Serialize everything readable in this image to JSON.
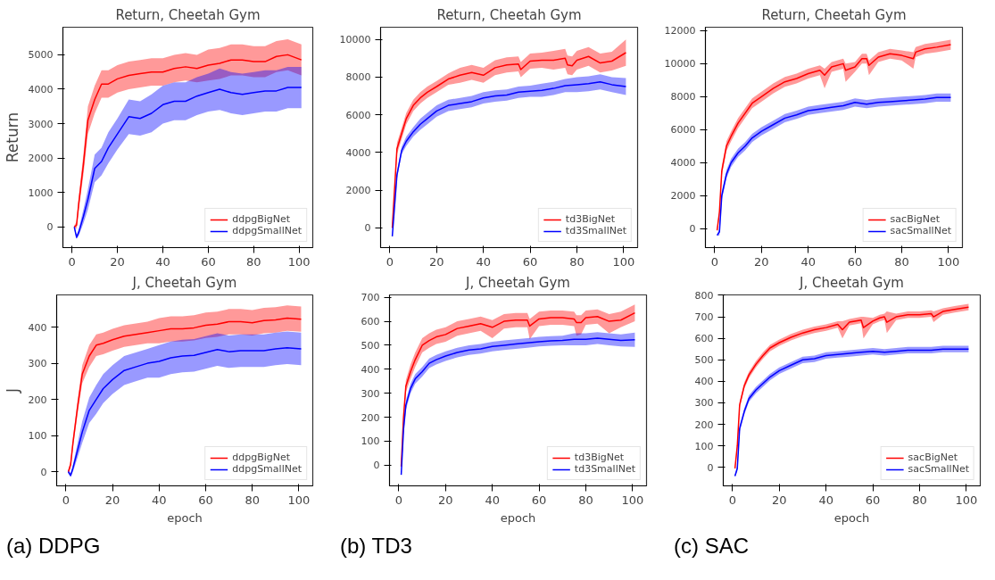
{
  "chart_data": [
    {
      "type": "line",
      "title": "Return, Cheetah Gym",
      "ylabel": "Return",
      "xlim": [
        -4,
        106
      ],
      "xticks": [
        0,
        20,
        40,
        60,
        80,
        100
      ],
      "ylim": [
        -600,
        5800
      ],
      "yticks": [
        0,
        1000,
        2000,
        3000,
        4000,
        5000
      ],
      "grid": false,
      "legend": "bottom right",
      "series": [
        {
          "name": "ddpgBigNet",
          "color": "#ff0000",
          "x": [
            1,
            2,
            3,
            5,
            7,
            10,
            13,
            16,
            20,
            25,
            30,
            35,
            40,
            45,
            50,
            55,
            60,
            65,
            70,
            75,
            80,
            85,
            90,
            95,
            101
          ],
          "values": [
            0,
            50,
            700,
            1800,
            3100,
            3700,
            4150,
            4150,
            4300,
            4400,
            4450,
            4500,
            4500,
            4600,
            4650,
            4600,
            4700,
            4750,
            4850,
            4850,
            4800,
            4800,
            4950,
            5000,
            4850
          ],
          "lower": [
            -50,
            -50,
            500,
            1500,
            2700,
            3300,
            3750,
            3750,
            3900,
            4000,
            4050,
            4100,
            4100,
            4200,
            4250,
            4200,
            4250,
            4300,
            4400,
            4400,
            4350,
            4350,
            4500,
            4550,
            4400
          ],
          "upper": [
            50,
            150,
            900,
            2100,
            3500,
            4100,
            4550,
            4550,
            4700,
            4800,
            4850,
            4900,
            4900,
            5000,
            5050,
            5000,
            5150,
            5200,
            5300,
            5300,
            5250,
            5250,
            5400,
            5450,
            5300
          ]
        },
        {
          "name": "ddpgSmallNet",
          "color": "#0000ff",
          "x": [
            1,
            2,
            3,
            5,
            7,
            10,
            13,
            16,
            20,
            25,
            30,
            35,
            40,
            45,
            50,
            55,
            60,
            65,
            70,
            75,
            80,
            85,
            90,
            95,
            101
          ],
          "values": [
            0,
            -300,
            -150,
            300,
            800,
            1700,
            1900,
            2300,
            2700,
            3200,
            3150,
            3300,
            3550,
            3650,
            3650,
            3800,
            3900,
            4000,
            3900,
            3850,
            3900,
            3950,
            3950,
            4050,
            4050
          ],
          "lower": [
            -50,
            -350,
            -250,
            100,
            500,
            1300,
            1500,
            1850,
            2250,
            2700,
            2650,
            2750,
            3000,
            3100,
            3100,
            3250,
            3350,
            3400,
            3300,
            3250,
            3300,
            3350,
            3350,
            3450,
            3450
          ],
          "upper": [
            50,
            -250,
            -50,
            500,
            1100,
            2100,
            2300,
            2750,
            3150,
            3700,
            3650,
            3850,
            4100,
            4200,
            4200,
            4350,
            4450,
            4600,
            4500,
            4450,
            4500,
            4550,
            4550,
            4650,
            4650
          ]
        }
      ]
    },
    {
      "type": "line",
      "title": "Return, Cheetah Gym",
      "xlim": [
        -4,
        106
      ],
      "xticks": [
        0,
        20,
        40,
        60,
        80,
        100
      ],
      "ylim": [
        -1050,
        10650
      ],
      "yticks": [
        0,
        2000,
        4000,
        6000,
        8000,
        10000
      ],
      "grid": false,
      "legend": "bottom right",
      "series": [
        {
          "name": "td3BigNet",
          "color": "#ff0000",
          "x": [
            1,
            3,
            5,
            7,
            10,
            13,
            16,
            20,
            25,
            30,
            35,
            40,
            45,
            50,
            55,
            56,
            60,
            65,
            70,
            75,
            76,
            78,
            80,
            85,
            90,
            95,
            101
          ],
          "values": [
            0,
            4200,
            5000,
            5800,
            6500,
            6900,
            7200,
            7500,
            7900,
            8100,
            8250,
            8100,
            8500,
            8650,
            8700,
            8400,
            8850,
            8900,
            8900,
            9000,
            8650,
            8600,
            8900,
            9100,
            8750,
            8850,
            9300
          ],
          "lower": [
            -100,
            3900,
            4700,
            5500,
            6200,
            6600,
            6900,
            7200,
            7600,
            7700,
            7850,
            7700,
            8100,
            8250,
            8300,
            8000,
            8450,
            8500,
            8400,
            8500,
            8150,
            8100,
            8400,
            8600,
            8250,
            8350,
            8600
          ],
          "upper": [
            100,
            4500,
            5300,
            6100,
            6800,
            7200,
            7500,
            7800,
            8200,
            8500,
            8650,
            8500,
            8900,
            9050,
            9100,
            8800,
            9250,
            9300,
            9400,
            9500,
            9150,
            9100,
            9400,
            9600,
            9250,
            9350,
            10000
          ]
        },
        {
          "name": "td3SmallNet",
          "color": "#0000ff",
          "x": [
            1,
            3,
            5,
            7,
            10,
            13,
            16,
            20,
            25,
            30,
            35,
            40,
            45,
            50,
            55,
            60,
            65,
            70,
            75,
            80,
            85,
            90,
            95,
            101
          ],
          "values": [
            -450,
            2800,
            4100,
            4600,
            5100,
            5500,
            5800,
            6200,
            6500,
            6600,
            6700,
            6900,
            7000,
            7050,
            7200,
            7250,
            7300,
            7400,
            7550,
            7600,
            7650,
            7750,
            7600,
            7500
          ],
          "lower": [
            -500,
            2600,
            3900,
            4350,
            4850,
            5200,
            5500,
            5900,
            6200,
            6300,
            6400,
            6600,
            6700,
            6750,
            6900,
            6950,
            6950,
            7050,
            7200,
            7200,
            7250,
            7350,
            7200,
            7050
          ],
          "upper": [
            -400,
            3000,
            4300,
            4850,
            5350,
            5800,
            6100,
            6500,
            6800,
            6900,
            7000,
            7200,
            7300,
            7350,
            7500,
            7550,
            7650,
            7750,
            7900,
            8000,
            8050,
            8150,
            8000,
            7950
          ]
        }
      ]
    },
    {
      "type": "line",
      "title": "Return, Cheetah Gym",
      "xlim": [
        -4,
        106
      ],
      "xticks": [
        0,
        20,
        40,
        60,
        80,
        100
      ],
      "ylim": [
        -1150,
        12210
      ],
      "yticks": [
        0,
        2000,
        4000,
        6000,
        8000,
        10000,
        12000
      ],
      "grid": false,
      "legend": "bottom right",
      "series": [
        {
          "name": "sacBigNet",
          "color": "#ff0000",
          "x": [
            1,
            2,
            3,
            5,
            7,
            10,
            13,
            16,
            20,
            25,
            30,
            35,
            40,
            45,
            47,
            50,
            55,
            56,
            60,
            63,
            65,
            66,
            70,
            75,
            80,
            85,
            86,
            90,
            95,
            101
          ],
          "values": [
            -100,
            1000,
            3500,
            5000,
            5600,
            6400,
            7000,
            7600,
            8000,
            8500,
            8900,
            9100,
            9400,
            9600,
            9300,
            9800,
            10000,
            9600,
            9800,
            10300,
            10300,
            9900,
            10400,
            10600,
            10500,
            10300,
            10700,
            10900,
            11000,
            11150
          ],
          "lower": [
            -200,
            800,
            3200,
            4700,
            5300,
            6100,
            6700,
            7300,
            7700,
            8200,
            8600,
            8800,
            9100,
            9300,
            8500,
            9500,
            9700,
            8900,
            9500,
            10000,
            10000,
            9300,
            10100,
            10300,
            10200,
            9700,
            10400,
            10600,
            10700,
            10850
          ],
          "upper": [
            0,
            1200,
            3800,
            5300,
            5900,
            6700,
            7300,
            7900,
            8300,
            8800,
            9200,
            9400,
            9700,
            9900,
            9700,
            10100,
            10300,
            10000,
            10100,
            10600,
            10600,
            10200,
            10700,
            10900,
            10800,
            10700,
            11000,
            11200,
            11300,
            11450
          ]
        },
        {
          "name": "sacSmallNet",
          "color": "#0000ff",
          "x": [
            1,
            2,
            3,
            5,
            7,
            10,
            13,
            16,
            20,
            25,
            30,
            35,
            40,
            45,
            50,
            55,
            60,
            65,
            70,
            75,
            80,
            85,
            90,
            95,
            101
          ],
          "values": [
            -400,
            -200,
            2000,
            3300,
            4000,
            4600,
            5000,
            5500,
            5900,
            6300,
            6700,
            6900,
            7150,
            7250,
            7350,
            7450,
            7650,
            7550,
            7650,
            7700,
            7750,
            7800,
            7850,
            7950,
            7950
          ],
          "lower": [
            -450,
            -400,
            1750,
            3050,
            3750,
            4350,
            4750,
            5250,
            5650,
            6050,
            6450,
            6650,
            6900,
            7000,
            7100,
            7200,
            7400,
            7300,
            7400,
            7450,
            7500,
            7550,
            7600,
            7700,
            7700
          ],
          "upper": [
            -350,
            0,
            2250,
            3550,
            4250,
            4850,
            5250,
            5750,
            6150,
            6550,
            6950,
            7150,
            7400,
            7500,
            7600,
            7700,
            7900,
            7800,
            7900,
            7950,
            8000,
            8050,
            8100,
            8200,
            8200
          ]
        }
      ]
    },
    {
      "type": "line",
      "title": "J, Cheetah Gym",
      "xlabel": "epoch",
      "ylabel": "J",
      "annotations": [
        "(a) DDPG"
      ],
      "xlim": [
        -4,
        106
      ],
      "xticks": [
        0,
        20,
        40,
        60,
        80,
        100
      ],
      "ylim": [
        -39,
        489
      ],
      "yticks": [
        0,
        100,
        200,
        300,
        400
      ],
      "grid": false,
      "legend": "bottom right",
      "series": [
        {
          "name": "ddpgBigNet",
          "color": "#ff0000",
          "x": [
            1,
            2,
            3,
            5,
            7,
            10,
            13,
            16,
            20,
            25,
            30,
            35,
            40,
            45,
            50,
            55,
            60,
            65,
            70,
            75,
            80,
            85,
            90,
            95,
            101
          ],
          "values": [
            0,
            20,
            80,
            180,
            270,
            320,
            350,
            355,
            365,
            375,
            380,
            385,
            390,
            395,
            395,
            398,
            405,
            408,
            415,
            415,
            412,
            418,
            420,
            425,
            422
          ],
          "lower": [
            -5,
            10,
            65,
            160,
            245,
            290,
            320,
            325,
            335,
            345,
            350,
            355,
            355,
            360,
            360,
            363,
            370,
            373,
            380,
            380,
            377,
            383,
            385,
            390,
            387
          ],
          "upper": [
            5,
            30,
            95,
            200,
            295,
            350,
            380,
            385,
            395,
            405,
            410,
            415,
            425,
            430,
            430,
            433,
            440,
            443,
            450,
            450,
            447,
            453,
            455,
            460,
            457
          ]
        },
        {
          "name": "ddpgSmallNet",
          "color": "#0000ff",
          "x": [
            1,
            2,
            3,
            5,
            7,
            10,
            13,
            16,
            20,
            25,
            30,
            35,
            40,
            45,
            50,
            55,
            60,
            65,
            70,
            75,
            80,
            85,
            90,
            95,
            101
          ],
          "values": [
            0,
            -10,
            10,
            60,
            110,
            170,
            200,
            230,
            255,
            280,
            290,
            300,
            305,
            315,
            320,
            322,
            330,
            338,
            332,
            335,
            335,
            335,
            340,
            343,
            340
          ],
          "lower": [
            -5,
            -15,
            0,
            40,
            80,
            135,
            160,
            190,
            215,
            240,
            250,
            260,
            260,
            270,
            275,
            277,
            285,
            293,
            287,
            290,
            290,
            290,
            295,
            298,
            295
          ],
          "upper": [
            5,
            -5,
            20,
            80,
            140,
            205,
            240,
            270,
            295,
            320,
            330,
            340,
            350,
            360,
            365,
            367,
            375,
            383,
            377,
            380,
            380,
            380,
            385,
            388,
            385
          ]
        }
      ]
    },
    {
      "type": "line",
      "title": "J, Cheetah Gym",
      "xlabel": "epoch",
      "annotations": [
        "(b) TD3"
      ],
      "xlim": [
        -4,
        106
      ],
      "xticks": [
        0,
        20,
        40,
        60,
        80,
        100
      ],
      "ylim": [
        -86,
        710
      ],
      "yticks": [
        0,
        100,
        200,
        300,
        400,
        500,
        600,
        700
      ],
      "grid": false,
      "legend": "bottom right",
      "series": [
        {
          "name": "td3BigNet",
          "color": "#ff0000",
          "x": [
            1,
            2,
            3,
            5,
            7,
            10,
            13,
            16,
            20,
            25,
            30,
            35,
            40,
            45,
            50,
            55,
            56,
            60,
            65,
            70,
            75,
            76,
            78,
            80,
            85,
            90,
            95,
            101
          ],
          "values": [
            -5,
            200,
            330,
            390,
            440,
            500,
            520,
            535,
            545,
            570,
            580,
            590,
            575,
            600,
            605,
            605,
            580,
            610,
            615,
            615,
            610,
            595,
            595,
            615,
            620,
            600,
            605,
            635
          ],
          "lower": [
            -10,
            180,
            305,
            360,
            410,
            470,
            490,
            505,
            515,
            540,
            550,
            560,
            530,
            570,
            575,
            575,
            525,
            580,
            585,
            585,
            580,
            540,
            545,
            585,
            590,
            550,
            575,
            600
          ],
          "upper": [
            0,
            220,
            355,
            420,
            470,
            530,
            550,
            565,
            575,
            600,
            610,
            620,
            605,
            630,
            635,
            635,
            610,
            640,
            645,
            645,
            640,
            625,
            625,
            645,
            650,
            630,
            640,
            670
          ]
        },
        {
          "name": "td3SmallNet",
          "color": "#0000ff",
          "x": [
            1,
            2,
            3,
            5,
            7,
            10,
            13,
            16,
            20,
            25,
            30,
            35,
            40,
            45,
            50,
            55,
            60,
            65,
            70,
            75,
            80,
            85,
            90,
            95,
            101
          ],
          "values": [
            -40,
            150,
            250,
            320,
            360,
            390,
            425,
            440,
            455,
            470,
            480,
            485,
            495,
            500,
            505,
            510,
            515,
            518,
            520,
            525,
            525,
            530,
            525,
            520,
            523
          ],
          "lower": [
            -45,
            135,
            230,
            300,
            340,
            370,
            405,
            420,
            435,
            450,
            460,
            465,
            475,
            480,
            485,
            490,
            495,
            498,
            500,
            500,
            500,
            505,
            500,
            495,
            493
          ],
          "upper": [
            -35,
            165,
            270,
            340,
            380,
            410,
            445,
            460,
            475,
            490,
            500,
            505,
            515,
            520,
            525,
            530,
            535,
            538,
            540,
            550,
            550,
            555,
            550,
            545,
            553
          ]
        }
      ]
    },
    {
      "type": "line",
      "title": "J, Cheetah Gym",
      "xlabel": "epoch",
      "annotations": [
        "(c) SAC"
      ],
      "xlim": [
        -4,
        106
      ],
      "xticks": [
        0,
        20,
        40,
        60,
        80,
        100
      ],
      "ylim": [
        -86,
        802
      ],
      "yticks": [
        0,
        100,
        200,
        300,
        400,
        500,
        600,
        700,
        800
      ],
      "grid": false,
      "legend": "bottom right",
      "series": [
        {
          "name": "sacBigNet",
          "color": "#ff0000",
          "x": [
            1,
            2,
            3,
            5,
            7,
            10,
            13,
            16,
            20,
            25,
            30,
            35,
            40,
            45,
            47,
            50,
            55,
            56,
            60,
            63,
            65,
            66,
            70,
            75,
            80,
            85,
            86,
            90,
            95,
            101
          ],
          "values": [
            -5,
            100,
            290,
            380,
            430,
            480,
            520,
            555,
            580,
            605,
            625,
            640,
            650,
            665,
            640,
            675,
            685,
            650,
            680,
            695,
            700,
            675,
            700,
            710,
            710,
            715,
            700,
            725,
            735,
            745
          ],
          "lower": [
            -10,
            85,
            275,
            365,
            415,
            465,
            505,
            540,
            565,
            590,
            610,
            625,
            635,
            650,
            600,
            660,
            670,
            600,
            665,
            680,
            685,
            625,
            685,
            695,
            695,
            700,
            675,
            710,
            720,
            730
          ],
          "upper": [
            0,
            115,
            305,
            395,
            445,
            495,
            535,
            570,
            595,
            620,
            640,
            655,
            665,
            680,
            680,
            690,
            700,
            700,
            695,
            710,
            715,
            725,
            715,
            725,
            725,
            730,
            725,
            740,
            750,
            760
          ]
        },
        {
          "name": "sacSmallNet",
          "color": "#0000ff",
          "x": [
            1,
            2,
            3,
            5,
            7,
            10,
            13,
            16,
            20,
            25,
            30,
            35,
            40,
            45,
            50,
            55,
            60,
            65,
            70,
            75,
            80,
            85,
            90,
            95,
            101
          ],
          "values": [
            -40,
            -5,
            180,
            260,
            320,
            360,
            390,
            420,
            450,
            475,
            500,
            505,
            520,
            525,
            530,
            535,
            540,
            535,
            540,
            545,
            545,
            545,
            550,
            550,
            550
          ],
          "lower": [
            -45,
            -20,
            165,
            245,
            305,
            345,
            375,
            405,
            435,
            460,
            485,
            490,
            505,
            510,
            515,
            520,
            525,
            520,
            525,
            530,
            530,
            530,
            535,
            535,
            535
          ],
          "upper": [
            -35,
            10,
            195,
            275,
            335,
            375,
            405,
            435,
            465,
            490,
            515,
            520,
            535,
            540,
            545,
            550,
            555,
            550,
            555,
            560,
            560,
            560,
            565,
            565,
            565
          ]
        }
      ]
    }
  ]
}
